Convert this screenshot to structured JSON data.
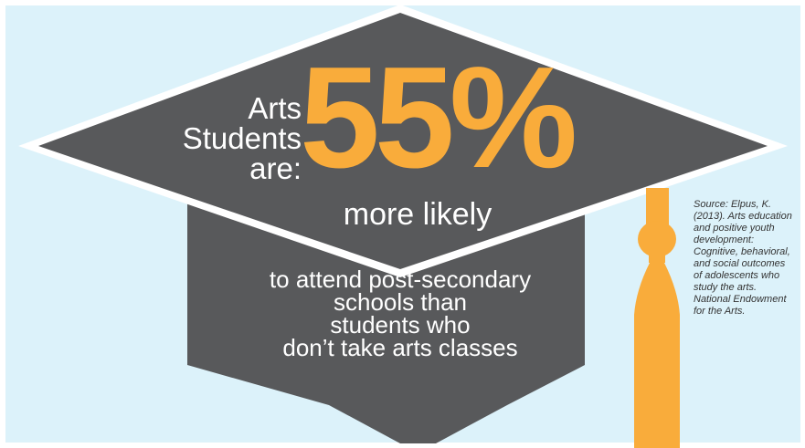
{
  "headline": {
    "lead_lines": [
      "Arts",
      "Students",
      "are:"
    ],
    "percent": "55%",
    "qualifier": "more likely",
    "body_lines": [
      "to attend post-secondary",
      "schools than",
      "students who",
      "don’t take arts classes"
    ]
  },
  "source": {
    "citation": "Source: Elpus, K. (2013). Arts education and positive youth development: Cognitive, behavioral, and social outcomes of adolescents who study the arts. National Endowment for the Arts."
  },
  "colors": {
    "background": "#dcf2fa",
    "cap": "#58595b",
    "accent": "#f9ac3b",
    "text": "#ffffff"
  },
  "icons": [
    "graduation-cap-icon",
    "tassel-icon"
  ]
}
